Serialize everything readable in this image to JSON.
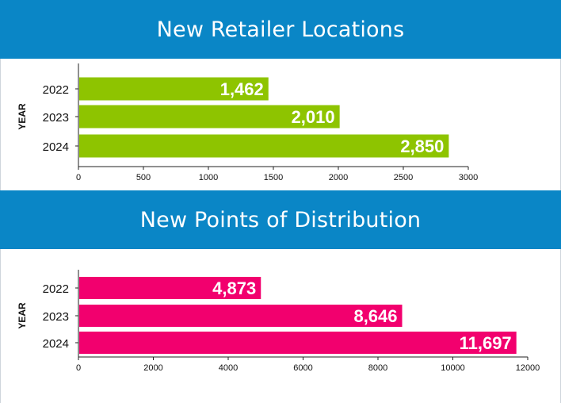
{
  "charts": [
    {
      "heading": "New Retailer Locations",
      "bar_color": "#8ec400",
      "chart_data": {
        "type": "bar",
        "orientation": "horizontal",
        "title": "New Retailer Locations",
        "categories": [
          "2022",
          "2023",
          "2024"
        ],
        "values": [
          1462,
          2010,
          2850
        ],
        "value_labels": [
          "1,462",
          "2,010",
          "2,850"
        ],
        "xlabel": "",
        "ylabel": "YEAR",
        "xlim": [
          0,
          3000
        ],
        "xticks": [
          "0",
          "500",
          "1000",
          "1500",
          "2000",
          "2500",
          "3000"
        ],
        "grid": false
      }
    },
    {
      "heading": "New Points of Distribution",
      "bar_color": "#f2006e",
      "chart_data": {
        "type": "bar",
        "orientation": "horizontal",
        "title": "New Points of Distribution",
        "categories": [
          "2022",
          "2023",
          "2024"
        ],
        "values": [
          4873,
          8646,
          11697
        ],
        "value_labels": [
          "4,873",
          "8,646",
          "11,697"
        ],
        "xlabel": "",
        "ylabel": "YEAR",
        "xlim": [
          0,
          12000
        ],
        "xticks": [
          "0",
          "2000",
          "4000",
          "6000",
          "8000",
          "10000",
          "12000"
        ],
        "grid": false
      }
    }
  ]
}
